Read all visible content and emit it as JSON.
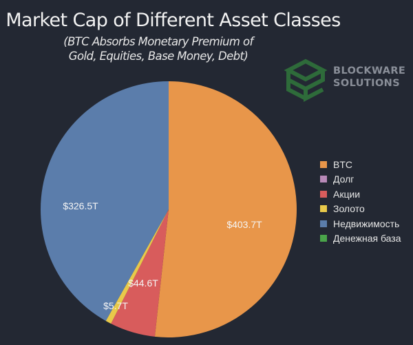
{
  "header": {
    "title": "Market Cap of Different Asset Classes",
    "subtitle_line1": "(BTC Absorbs Monetary Premium of",
    "subtitle_line2": "Gold, Equities, Base Money, Debt)"
  },
  "logo": {
    "line1": "BLOCKWARE",
    "line2": "SOLUTIONS",
    "icon": "cube-logo-icon"
  },
  "chart_data": {
    "type": "pie",
    "title": "Market Cap of Different Asset Classes",
    "subtitle": "(BTC Absorbs Monetary Premium of Gold, Equities, Base Money, Debt)",
    "unit": "Trillion USD",
    "start_angle_deg": 0,
    "direction": "clockwise",
    "legend_position": "right",
    "slices": [
      {
        "name": "BTC",
        "value": 403.7,
        "label": "$403.7T",
        "color": "#e8964a"
      },
      {
        "name": "Долг",
        "value": 0,
        "label": "",
        "color": "#b88ab8"
      },
      {
        "name": "Акции",
        "value": 44.6,
        "label": "$44.6T",
        "color": "#d85c5c"
      },
      {
        "name": "Золото",
        "value": 5.7,
        "label": "$5.7T",
        "color": "#e8c94a"
      },
      {
        "name": "Недвижимость",
        "value": 326.5,
        "label": "$326.5T",
        "color": "#5b7dab"
      },
      {
        "name": "Денежная база",
        "value": 0,
        "label": "",
        "color": "#4aa44a"
      }
    ]
  },
  "legend": {
    "items": [
      {
        "label": "BTC",
        "color": "#e8964a"
      },
      {
        "label": "Долг",
        "color": "#b88ab8"
      },
      {
        "label": "Акции",
        "color": "#d85c5c"
      },
      {
        "label": "Золото",
        "color": "#e8c94a"
      },
      {
        "label": "Недвижимость",
        "color": "#5b7dab"
      },
      {
        "label": "Денежная база",
        "color": "#4aa44a"
      }
    ]
  }
}
